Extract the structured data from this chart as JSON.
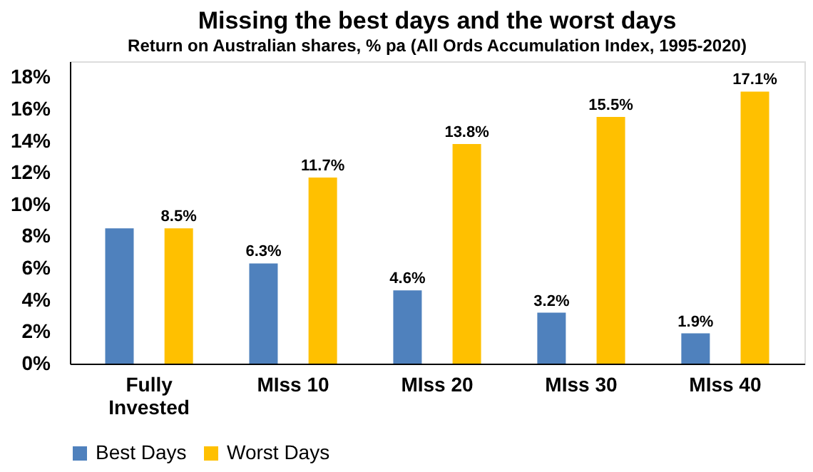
{
  "chart_data": {
    "type": "bar",
    "title": "Missing the best days and the worst days",
    "subtitle": "Return on Australian shares, % pa (All Ords Accumulation Index, 1995-2020)",
    "categories": [
      "Fully Invested",
      "MIss 10",
      "MIss 20",
      "MIss 30",
      "MIss 40"
    ],
    "series": [
      {
        "name": "Best Days",
        "color": "#4f81bd",
        "values": [
          8.5,
          6.3,
          4.6,
          3.2,
          1.9
        ],
        "value_labels": [
          null,
          "6.3%",
          "4.6%",
          "3.2%",
          "1.9%"
        ]
      },
      {
        "name": "Worst Days",
        "color": "#ffc000",
        "values": [
          8.5,
          11.7,
          13.8,
          15.5,
          17.1
        ],
        "value_labels": [
          "8.5%",
          "11.7%",
          "13.8%",
          "15.5%",
          "17.1%"
        ]
      }
    ],
    "ylim": [
      0,
      19
    ],
    "yticks": [
      {
        "value": 0,
        "label": "0%"
      },
      {
        "value": 2,
        "label": "2%"
      },
      {
        "value": 4,
        "label": "4%"
      },
      {
        "value": 6,
        "label": "6%"
      },
      {
        "value": 8,
        "label": "8%"
      },
      {
        "value": 10,
        "label": "10%"
      },
      {
        "value": 12,
        "label": "12%"
      },
      {
        "value": 14,
        "label": "14%"
      },
      {
        "value": 16,
        "label": "16%"
      },
      {
        "value": 18,
        "label": "18%"
      }
    ],
    "grid": false,
    "legend": "bottom"
  }
}
